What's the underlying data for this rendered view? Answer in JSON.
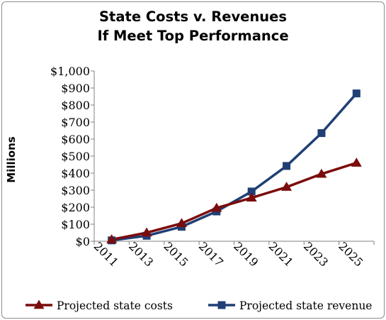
{
  "chart_data": {
    "type": "line",
    "title_line1": "State Costs v. Revenues",
    "title_line2": "If Meet Top Performance",
    "xlabel": "",
    "ylabel": "Millions",
    "x": [
      "2011",
      "2013",
      "2015",
      "2017",
      "2019",
      "2021",
      "2023",
      "2025"
    ],
    "ylim": [
      0,
      1000
    ],
    "y_ticks": [
      "$0",
      "$100",
      "$200",
      "$300",
      "$400",
      "$500",
      "$600",
      "$700",
      "$800",
      "$900",
      "$1,000"
    ],
    "grid": false,
    "legend_position": "bottom",
    "series": [
      {
        "name": "Projected state costs",
        "marker": "triangle",
        "color": "#7b0c0c",
        "values": [
          10,
          50,
          105,
          195,
          255,
          318,
          395,
          460
        ]
      },
      {
        "name": "Projected state revenue",
        "marker": "square",
        "color": "#1f3f75",
        "values": [
          5,
          32,
          85,
          175,
          292,
          442,
          635,
          868
        ]
      }
    ]
  }
}
